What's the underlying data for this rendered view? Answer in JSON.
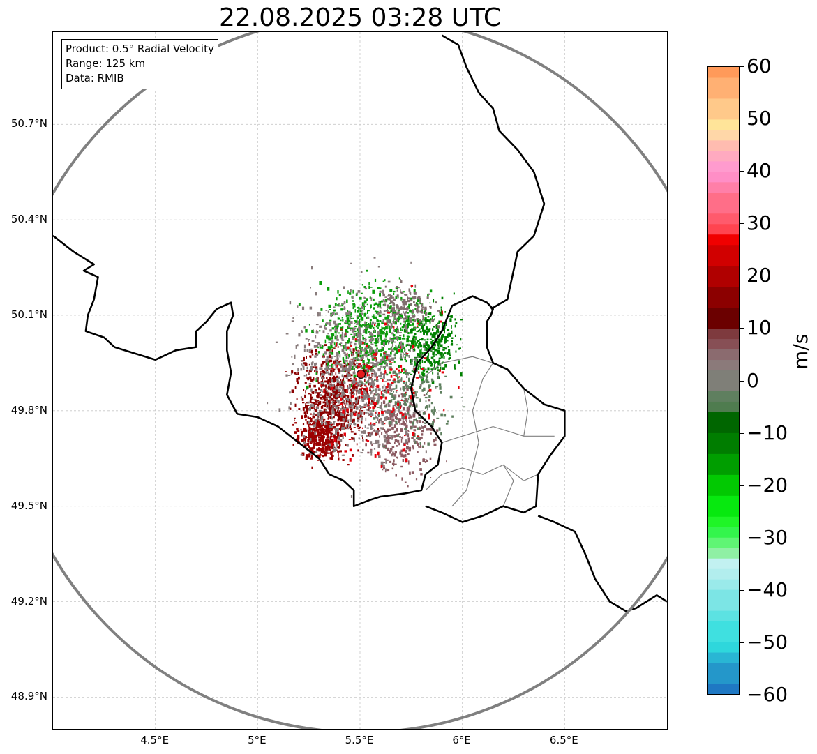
{
  "title": "22.08.2025 03:28 UTC",
  "info_box": {
    "lines": [
      "Product: 0.5° Radial Velocity",
      "Range: 125 km",
      "Data: RMIB"
    ]
  },
  "map": {
    "projection": "lat-lon",
    "lon_range": [
      4.0,
      7.0
    ],
    "lat_range": [
      48.8,
      50.99
    ],
    "lon_ticks": [
      {
        "value": 4.5,
        "label": "4.5°E"
      },
      {
        "value": 5.0,
        "label": "5°E"
      },
      {
        "value": 5.5,
        "label": "5.5°E"
      },
      {
        "value": 6.0,
        "label": "6°E"
      },
      {
        "value": 6.5,
        "label": "6.5°E"
      }
    ],
    "lat_ticks": [
      {
        "value": 50.7,
        "label": "50.7°N"
      },
      {
        "value": 50.4,
        "label": "50.4°N"
      },
      {
        "value": 50.1,
        "label": "50.1°N"
      },
      {
        "value": 49.8,
        "label": "49.8°N"
      },
      {
        "value": 49.5,
        "label": "49.5°N"
      },
      {
        "value": 49.2,
        "label": "49.2°N"
      },
      {
        "value": 48.9,
        "label": "48.9°N"
      }
    ],
    "gridlines": true,
    "radar_site": {
      "lon": 5.505,
      "lat": 49.915,
      "color": "#e31a1c"
    },
    "range_ring_km": 125,
    "range_ring_color": "#808080",
    "border_color": "#000000",
    "admin_border_color": "#808080",
    "country_borders": [
      [
        [
          4.0,
          50.35
        ],
        [
          4.1,
          50.3
        ],
        [
          4.2,
          50.26
        ],
        [
          4.15,
          50.24
        ],
        [
          4.22,
          50.22
        ],
        [
          4.2,
          50.15
        ],
        [
          4.17,
          50.1
        ],
        [
          4.16,
          50.05
        ],
        [
          4.25,
          50.03
        ],
        [
          4.3,
          50.0
        ],
        [
          4.4,
          49.98
        ],
        [
          4.5,
          49.96
        ],
        [
          4.6,
          49.99
        ],
        [
          4.7,
          50.0
        ],
        [
          4.7,
          50.05
        ],
        [
          4.75,
          50.08
        ],
        [
          4.8,
          50.12
        ],
        [
          4.87,
          50.14
        ],
        [
          4.88,
          50.1
        ],
        [
          4.85,
          50.05
        ],
        [
          4.85,
          49.99
        ],
        [
          4.87,
          49.92
        ],
        [
          4.85,
          49.85
        ],
        [
          4.9,
          49.79
        ],
        [
          5.0,
          49.78
        ],
        [
          5.1,
          49.75
        ],
        [
          5.2,
          49.7
        ],
        [
          5.3,
          49.65
        ],
        [
          5.35,
          49.6
        ],
        [
          5.42,
          49.58
        ],
        [
          5.47,
          49.55
        ],
        [
          5.47,
          49.5
        ],
        [
          5.55,
          49.52
        ],
        [
          5.6,
          49.53
        ],
        [
          5.72,
          49.54
        ],
        [
          5.8,
          49.55
        ],
        [
          5.82,
          49.6
        ],
        [
          5.88,
          49.63
        ],
        [
          5.9,
          49.7
        ],
        [
          5.85,
          49.75
        ],
        [
          5.77,
          49.8
        ],
        [
          5.75,
          49.87
        ],
        [
          5.78,
          49.95
        ],
        [
          5.85,
          50.0
        ],
        [
          5.9,
          50.05
        ],
        [
          5.95,
          50.13
        ],
        [
          6.05,
          50.16
        ],
        [
          6.12,
          50.14
        ],
        [
          6.15,
          50.12
        ],
        [
          6.14,
          50.1
        ],
        [
          6.12,
          50.08
        ],
        [
          6.12,
          50.0
        ],
        [
          6.15,
          49.95
        ],
        [
          6.22,
          49.93
        ],
        [
          6.3,
          49.87
        ],
        [
          6.4,
          49.82
        ],
        [
          6.5,
          49.8
        ],
        [
          6.5,
          49.72
        ],
        [
          6.43,
          49.66
        ],
        [
          6.37,
          49.6
        ],
        [
          6.36,
          49.5
        ],
        [
          6.3,
          49.48
        ],
        [
          6.2,
          49.5
        ],
        [
          6.1,
          49.47
        ],
        [
          6.0,
          49.45
        ],
        [
          5.9,
          49.48
        ],
        [
          5.82,
          49.5
        ]
      ],
      [
        [
          6.37,
          49.47
        ],
        [
          6.45,
          49.45
        ],
        [
          6.55,
          49.42
        ],
        [
          6.6,
          49.35
        ],
        [
          6.65,
          49.27
        ],
        [
          6.72,
          49.2
        ],
        [
          6.8,
          49.17
        ],
        [
          6.85,
          49.18
        ],
        [
          6.9,
          49.2
        ],
        [
          6.95,
          49.22
        ],
        [
          7.0,
          49.2
        ]
      ],
      [
        [
          6.14,
          50.12
        ],
        [
          6.22,
          50.15
        ],
        [
          6.27,
          50.3
        ],
        [
          6.35,
          50.35
        ],
        [
          6.4,
          50.45
        ],
        [
          6.35,
          50.55
        ],
        [
          6.27,
          50.62
        ],
        [
          6.18,
          50.68
        ],
        [
          6.15,
          50.75
        ],
        [
          6.08,
          50.8
        ],
        [
          6.02,
          50.88
        ],
        [
          5.98,
          50.95
        ],
        [
          5.9,
          50.98
        ]
      ]
    ],
    "admin_borders": [
      [
        [
          5.82,
          49.55
        ],
        [
          5.9,
          49.6
        ],
        [
          6.0,
          49.62
        ],
        [
          6.1,
          49.6
        ],
        [
          6.2,
          49.63
        ],
        [
          6.3,
          49.58
        ],
        [
          6.37,
          49.6
        ]
      ],
      [
        [
          5.9,
          49.7
        ],
        [
          6.0,
          49.72
        ],
        [
          6.15,
          49.75
        ],
        [
          6.3,
          49.72
        ],
        [
          6.45,
          49.72
        ]
      ],
      [
        [
          6.05,
          49.62
        ],
        [
          6.08,
          49.7
        ],
        [
          6.05,
          49.8
        ],
        [
          6.1,
          49.9
        ],
        [
          6.15,
          49.95
        ]
      ],
      [
        [
          5.95,
          49.5
        ],
        [
          6.02,
          49.55
        ],
        [
          6.05,
          49.62
        ]
      ],
      [
        [
          6.2,
          49.5
        ],
        [
          6.25,
          49.58
        ],
        [
          6.2,
          49.63
        ]
      ],
      [
        [
          6.3,
          49.72
        ],
        [
          6.32,
          49.8
        ],
        [
          6.3,
          49.87
        ]
      ],
      [
        [
          5.8,
          49.9
        ],
        [
          5.9,
          49.95
        ],
        [
          6.05,
          49.97
        ],
        [
          6.15,
          49.95
        ]
      ]
    ],
    "precip_clusters": [
      {
        "lon": 5.38,
        "lat": 49.85,
        "sx": 0.17,
        "sy": 0.13,
        "n": 700,
        "color": "#8b0000"
      },
      {
        "lon": 5.3,
        "lat": 49.72,
        "sx": 0.1,
        "sy": 0.06,
        "n": 350,
        "color": "#9c0000"
      },
      {
        "lon": 5.7,
        "lat": 49.74,
        "sx": 0.14,
        "sy": 0.12,
        "n": 300,
        "color": "#8c5b62"
      },
      {
        "lon": 5.58,
        "lat": 50.05,
        "sx": 0.24,
        "sy": 0.13,
        "n": 650,
        "color": "#0a9c0a"
      },
      {
        "lon": 5.85,
        "lat": 50.02,
        "sx": 0.12,
        "sy": 0.1,
        "n": 300,
        "color": "#008000"
      },
      {
        "lon": 5.48,
        "lat": 49.92,
        "sx": 0.26,
        "sy": 0.22,
        "n": 900,
        "color": "#897c7c"
      },
      {
        "lon": 5.72,
        "lat": 50.13,
        "sx": 0.12,
        "sy": 0.06,
        "n": 150,
        "color": "#806e6e"
      },
      {
        "lon": 5.75,
        "lat": 49.85,
        "sx": 0.16,
        "sy": 0.12,
        "n": 200,
        "color": "#5e7f5e"
      },
      {
        "lon": 5.6,
        "lat": 49.9,
        "sx": 0.25,
        "sy": 0.2,
        "n": 140,
        "color": "#e8000b"
      }
    ]
  },
  "colorbar": {
    "unit": "m/s",
    "min": -60,
    "max": 60,
    "ticks": [
      {
        "value": 60,
        "label": "60"
      },
      {
        "value": 50,
        "label": "50"
      },
      {
        "value": 40,
        "label": "40"
      },
      {
        "value": 30,
        "label": "30"
      },
      {
        "value": 20,
        "label": "20"
      },
      {
        "value": 10,
        "label": "10"
      },
      {
        "value": 0,
        "label": "0"
      },
      {
        "value": -10,
        "label": "−10"
      },
      {
        "value": -20,
        "label": "−20"
      },
      {
        "value": -30,
        "label": "−30"
      },
      {
        "value": -40,
        "label": "−40"
      },
      {
        "value": -50,
        "label": "−50"
      },
      {
        "value": -60,
        "label": "−60"
      }
    ],
    "bands": [
      {
        "from": -60,
        "to": -58,
        "color": "#1f78c3"
      },
      {
        "from": -58,
        "to": -54,
        "color": "#2497ca"
      },
      {
        "from": -54,
        "to": -52,
        "color": "#29b6d4"
      },
      {
        "from": -52,
        "to": -50,
        "color": "#2ed7dc"
      },
      {
        "from": -50,
        "to": -46,
        "color": "#3fe0e0"
      },
      {
        "from": -46,
        "to": -44,
        "color": "#5ce2e2"
      },
      {
        "from": -44,
        "to": -40,
        "color": "#7ce5e5"
      },
      {
        "from": -40,
        "to": -38,
        "color": "#9aeaea"
      },
      {
        "from": -38,
        "to": -36,
        "color": "#b2eeee"
      },
      {
        "from": -36,
        "to": -34,
        "color": "#c2f1f1"
      },
      {
        "from": -34,
        "to": -32,
        "color": "#8ff0a4"
      },
      {
        "from": -32,
        "to": -30,
        "color": "#5ff574"
      },
      {
        "from": -30,
        "to": -28,
        "color": "#33f54c"
      },
      {
        "from": -28,
        "to": -26,
        "color": "#1ff527"
      },
      {
        "from": -26,
        "to": -22,
        "color": "#07e90f"
      },
      {
        "from": -22,
        "to": -18,
        "color": "#02c902"
      },
      {
        "from": -18,
        "to": -14,
        "color": "#009e00"
      },
      {
        "from": -14,
        "to": -10,
        "color": "#007d00"
      },
      {
        "from": -10,
        "to": -6,
        "color": "#006600"
      },
      {
        "from": -6,
        "to": -4,
        "color": "#4f7c4f"
      },
      {
        "from": -4,
        "to": -2,
        "color": "#5f7f5f"
      },
      {
        "from": -2,
        "to": 2,
        "color": "#7f7f78"
      },
      {
        "from": 2,
        "to": 4,
        "color": "#8b7a7a"
      },
      {
        "from": 4,
        "to": 6,
        "color": "#8b6b6f"
      },
      {
        "from": 6,
        "to": 8,
        "color": "#874f55"
      },
      {
        "from": 8,
        "to": 10,
        "color": "#7e3a3e"
      },
      {
        "from": 10,
        "to": 14,
        "color": "#6b0000"
      },
      {
        "from": 14,
        "to": 18,
        "color": "#8c0000"
      },
      {
        "from": 18,
        "to": 22,
        "color": "#b00000"
      },
      {
        "from": 22,
        "to": 26,
        "color": "#d10000"
      },
      {
        "from": 26,
        "to": 28,
        "color": "#f00000"
      },
      {
        "from": 28,
        "to": 30,
        "color": "#ff4450"
      },
      {
        "from": 30,
        "to": 32,
        "color": "#ff5a6c"
      },
      {
        "from": 32,
        "to": 36,
        "color": "#ff6e88"
      },
      {
        "from": 36,
        "to": 38,
        "color": "#ff7fa8"
      },
      {
        "from": 38,
        "to": 40,
        "color": "#ff8ec6"
      },
      {
        "from": 40,
        "to": 42,
        "color": "#ff9bce"
      },
      {
        "from": 42,
        "to": 44,
        "color": "#ffaac0"
      },
      {
        "from": 44,
        "to": 46,
        "color": "#ffbcb0"
      },
      {
        "from": 46,
        "to": 48,
        "color": "#ffd7a8"
      },
      {
        "from": 48,
        "to": 50,
        "color": "#ffe499"
      },
      {
        "from": 50,
        "to": 54,
        "color": "#ffc98a"
      },
      {
        "from": 54,
        "to": 58,
        "color": "#ffb073"
      },
      {
        "from": 58,
        "to": 60,
        "color": "#ff9a5a"
      }
    ]
  }
}
